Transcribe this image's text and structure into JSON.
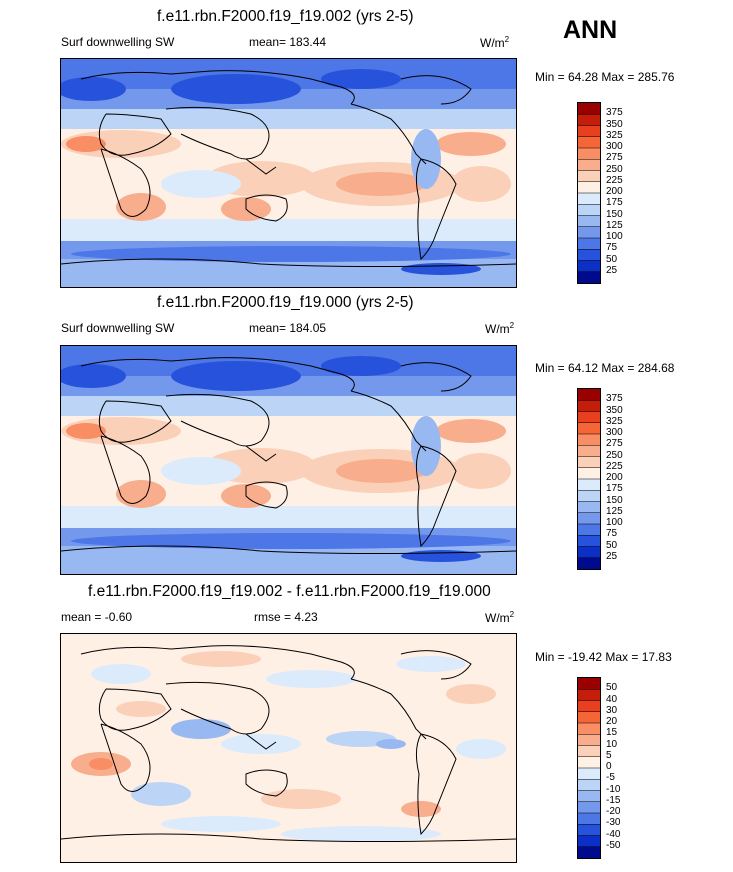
{
  "season": "ANN",
  "chart_data": [
    {
      "type": "heatmap",
      "title": "f.e11.rbn.F2000.f19_f19.002 (yrs 2-5)",
      "left_label": "Surf downwelling SW",
      "center_label": "mean= 183.44",
      "units": "W/m",
      "units_sup": "2",
      "minmax": "Min =  64.28 Max = 285.76",
      "min": 64.28,
      "max": 285.76,
      "mean": 183.44,
      "legend_levels": [
        "375",
        "350",
        "325",
        "300",
        "275",
        "250",
        "225",
        "200",
        "175",
        "150",
        "125",
        "100",
        "75",
        "50",
        "25"
      ],
      "legend_colors": [
        "#990000",
        "#c41d0a",
        "#e8401f",
        "#f66536",
        "#f98d63",
        "#f8ad8c",
        "#fbd0b8",
        "#fff0e6",
        "#dcebfb",
        "#bcd4f5",
        "#98b8f1",
        "#7499ec",
        "#4d76e6",
        "#2753dc",
        "#0c2fc8",
        "#000a8c"
      ]
    },
    {
      "type": "heatmap",
      "title": "f.e11.rbn.F2000.f19_f19.000 (yrs 2-5)",
      "left_label": "Surf downwelling SW",
      "center_label": "mean= 184.05",
      "units": "W/m",
      "units_sup": "2",
      "minmax": "Min =  64.12 Max = 284.68",
      "min": 64.12,
      "max": 284.68,
      "mean": 184.05,
      "legend_levels": [
        "375",
        "350",
        "325",
        "300",
        "275",
        "250",
        "225",
        "200",
        "175",
        "150",
        "125",
        "100",
        "75",
        "50",
        "25"
      ],
      "legend_colors": [
        "#990000",
        "#c41d0a",
        "#e8401f",
        "#f66536",
        "#f98d63",
        "#f8ad8c",
        "#fbd0b8",
        "#fff0e6",
        "#dcebfb",
        "#bcd4f5",
        "#98b8f1",
        "#7499ec",
        "#4d76e6",
        "#2753dc",
        "#0c2fc8",
        "#000a8c"
      ]
    },
    {
      "type": "heatmap",
      "title": "f.e11.rbn.F2000.f19_f19.002 - f.e11.rbn.F2000.f19_f19.000",
      "left_label": "mean =  -0.60",
      "center_label": "rmse =   4.23",
      "units": "W/m",
      "units_sup": "2",
      "minmax": "Min = -19.42 Max =  17.83",
      "min": -19.42,
      "max": 17.83,
      "mean": -0.6,
      "rmse": 4.23,
      "legend_levels": [
        "50",
        "40",
        "30",
        "20",
        "15",
        "10",
        "5",
        "0",
        "-5",
        "-10",
        "-15",
        "-20",
        "-30",
        "-40",
        "-50"
      ],
      "legend_colors": [
        "#990000",
        "#c41d0a",
        "#e8401f",
        "#f66536",
        "#f98d63",
        "#f8ad8c",
        "#fbd0b8",
        "#fff0e6",
        "#dcebfb",
        "#bcd4f5",
        "#98b8f1",
        "#7499ec",
        "#4d76e6",
        "#2753dc",
        "#0c2fc8",
        "#000a8c"
      ]
    }
  ]
}
